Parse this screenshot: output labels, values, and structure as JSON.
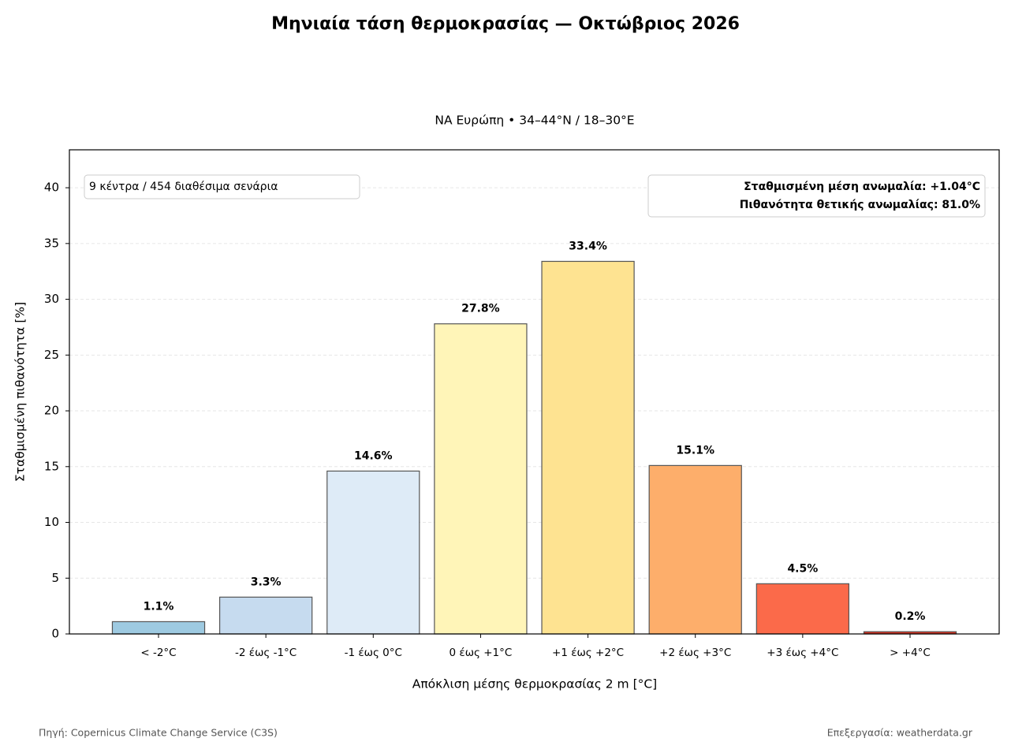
{
  "chart_data": {
    "type": "bar",
    "title": "Μηνιαία τάση θερμοκρασίας — Οκτώβριος 2026",
    "subtitle": "ΝΑ Ευρώπη  •  34–44°N / 18–30°E",
    "x_label": "Απόκλιση μέσης θερμοκρασίας 2 m [°C]",
    "y_label": "Σταθμισμένη πιθανότητα [%]",
    "categories": [
      "< -2°C",
      "-2 έως -1°C",
      "-1 έως 0°C",
      "0 έως +1°C",
      "+1 έως +2°C",
      "+2 έως +3°C",
      "+3 έως +4°C",
      "> +4°C"
    ],
    "values": [
      1.1,
      3.3,
      14.6,
      27.8,
      33.4,
      15.1,
      4.5,
      0.2
    ],
    "value_labels": [
      "1.1%",
      "3.3%",
      "14.6%",
      "27.8%",
      "33.4%",
      "15.1%",
      "4.5%",
      "0.2%"
    ],
    "colors": [
      "#9ecae1",
      "#c6dbef",
      "#deebf7",
      "#fff5b8",
      "#fee391",
      "#fdae6b",
      "#fb6a4a",
      "#d7301f"
    ],
    "ylim": [
      0,
      43.4
    ],
    "yticks": [
      0,
      5,
      10,
      15,
      20,
      25,
      30,
      35,
      40
    ],
    "grid": true,
    "info_box": "9 κέντρα / 454 διαθέσιμα σενάρια",
    "stats_box": [
      "Σταθμισμένη μέση ανωμαλία: +1.04°C",
      "Πιθανότητα θετικής ανωμαλίας: 81.0%"
    ],
    "source": "Πηγή: Copernicus Climate Change Service (C3S)",
    "credit": "Επεξεργασία: weatherdata.gr"
  }
}
